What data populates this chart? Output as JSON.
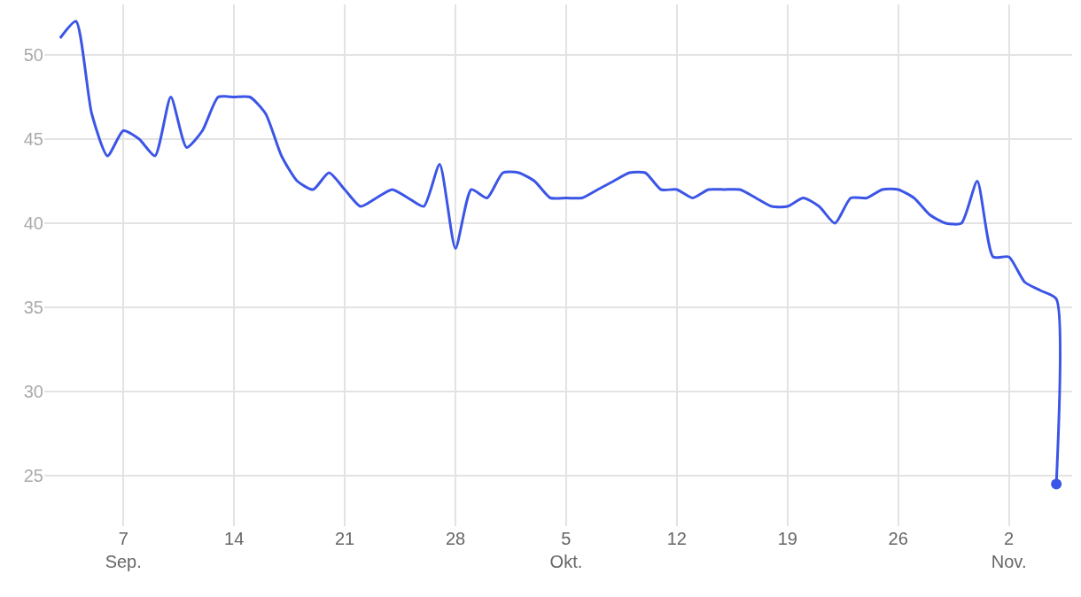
{
  "chart_data": {
    "type": "line",
    "x": [
      "--09-03",
      "--09-04",
      "--09-05",
      "--09-06",
      "--09-07",
      "--09-08",
      "--09-09",
      "--09-10",
      "--09-11",
      "--09-12",
      "--09-13",
      "--09-14",
      "--09-15",
      "--09-16",
      "--09-17",
      "--09-18",
      "--09-19",
      "--09-20",
      "--09-21",
      "--09-22",
      "--09-23",
      "--09-24",
      "--09-25",
      "--09-26",
      "--09-27",
      "--09-28",
      "--09-29",
      "--09-30",
      "--10-01",
      "--10-02",
      "--10-03",
      "--10-04",
      "--10-05",
      "--10-06",
      "--10-07",
      "--10-08",
      "--10-09",
      "--10-10",
      "--10-11",
      "--10-12",
      "--10-13",
      "--10-14",
      "--10-15",
      "--10-16",
      "--10-17",
      "--10-18",
      "--10-19",
      "--10-20",
      "--10-21",
      "--10-22",
      "--10-23",
      "--10-24",
      "--10-25",
      "--10-26",
      "--10-27",
      "--10-28",
      "--10-29",
      "--10-30",
      "--10-31",
      "--11-01",
      "--11-02",
      "--11-03",
      "--11-04",
      "--11-05",
      "--11-05"
    ],
    "series": [
      {
        "color": "#3b55e6",
        "marker": "none",
        "values": [
          51,
          52,
          46.5,
          44,
          45.5,
          45,
          44,
          47.5,
          44.5,
          45.5,
          47.5,
          47.5,
          47.5,
          46.5,
          44,
          42.5,
          42,
          43,
          42,
          41,
          41.5,
          42,
          41.5,
          41,
          43.5,
          38.5,
          42,
          41.5,
          43,
          43,
          42.5,
          41.5,
          41.5,
          41.5,
          42,
          42.5,
          43,
          43,
          42,
          42,
          41.5,
          42,
          42,
          42,
          41.5,
          41,
          41,
          41.5,
          41,
          40,
          41.5,
          41.5,
          42,
          42,
          41.5,
          40.5,
          40,
          40,
          42.5,
          38,
          38,
          36.5,
          36,
          35.5,
          24.5
        ]
      },
      {
        "type": "scatter",
        "color": "#3b55e6",
        "marker": "circle",
        "x": [
          "--11-05"
        ],
        "values": [
          24.5
        ]
      }
    ],
    "xlim": [
      "--09-02",
      "--11-06"
    ],
    "xticks": [
      {
        "value": "--09-07",
        "label": "7\nSep."
      },
      {
        "value": "--09-14",
        "label": "14"
      },
      {
        "value": "--09-21",
        "label": "21"
      },
      {
        "value": "--09-28",
        "label": "28"
      },
      {
        "value": "--10-05",
        "label": "5\nOkt."
      },
      {
        "value": "--10-12",
        "label": "12"
      },
      {
        "value": "--10-19",
        "label": "19"
      },
      {
        "value": "--10-26",
        "label": "26"
      },
      {
        "value": "--11-02",
        "label": "2\nNov."
      }
    ],
    "ylim": [
      22,
      53
    ],
    "yticks": [
      25,
      30,
      35,
      40,
      45,
      50
    ],
    "grid": true
  }
}
